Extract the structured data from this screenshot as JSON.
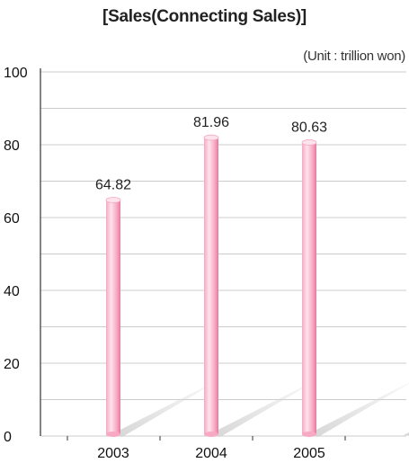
{
  "chart_data": {
    "type": "bar",
    "title": "[Sales(Connecting Sales)]",
    "unit_note": "(Unit : trillion won)",
    "categories": [
      "2003",
      "2004",
      "2005"
    ],
    "values": [
      64.82,
      81.96,
      80.63
    ],
    "value_labels": [
      "64.82",
      "81.96",
      "80.63"
    ],
    "ylim": [
      0,
      100
    ],
    "yticks": [
      0,
      20,
      40,
      60,
      80,
      100
    ],
    "grid": true,
    "legend": "none",
    "colors": {
      "bar_light": "#fde3ec",
      "bar_mid": "#f7a8c2",
      "bar_dark": "#e77a9d",
      "grid": "#cccccc",
      "axis": "#333333",
      "shadow": "#d6d6d6"
    }
  }
}
